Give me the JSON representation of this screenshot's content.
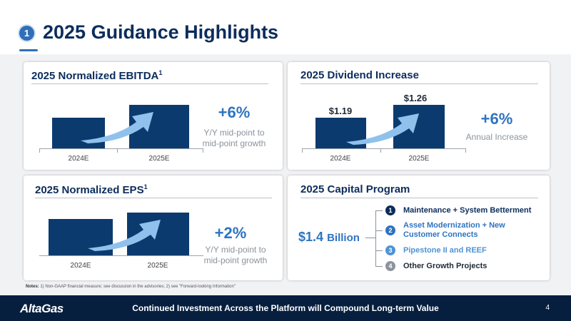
{
  "header": {
    "section_number": "1",
    "title": "2025 Guidance Highlights"
  },
  "ebitda": {
    "title": "2025 Normalized EBITDA",
    "title_sup": "1",
    "pct": "+6%",
    "note_line1": "Y/Y mid-point to",
    "note_line2": "mid-point growth"
  },
  "dividend": {
    "title": "2025 Dividend Increase",
    "pct": "+6%",
    "note": "Annual Increase"
  },
  "eps": {
    "title": "2025 Normalized EPS",
    "title_sup": "1",
    "pct": "+2%",
    "note_line1": "Y/Y mid-point to",
    "note_line2": "mid-point growth"
  },
  "capital": {
    "title": "2025 Capital Program",
    "amount": "$1.4",
    "amount_unit": "Billion",
    "items": [
      {
        "num": "1",
        "label": "Maintenance + System Betterment",
        "color": "#0b2d5c"
      },
      {
        "num": "2",
        "label_line1": "Asset Modernization + New",
        "label_line2": "Customer Connects",
        "color": "#2f74c0"
      },
      {
        "num": "3",
        "label": "Pipestone II and REEF",
        "color": "#4f93d6"
      },
      {
        "num": "4",
        "label": "Other Growth Projects",
        "color": "#1e2a36",
        "badge_color": "#8b949c"
      }
    ]
  },
  "chart_data": [
    {
      "type": "bar",
      "categories": [
        "2024E",
        "2025E"
      ],
      "values": [
        1.0,
        1.06
      ],
      "title": "2025 Normalized EBITDA"
    },
    {
      "type": "bar",
      "categories": [
        "2024E",
        "2025E"
      ],
      "values": [
        1.19,
        1.26
      ],
      "value_labels": [
        "$1.19",
        "$1.26"
      ],
      "title": "2025 Dividend Increase"
    },
    {
      "type": "bar",
      "categories": [
        "2024E",
        "2025E"
      ],
      "values": [
        1.0,
        1.02
      ],
      "title": "2025 Normalized EPS"
    }
  ],
  "notes": {
    "label": "Notes:",
    "text": " 1) Non-GAAP financial measure; see discussion in the advisories; 2) see \"Forward-looking Information\""
  },
  "footer": {
    "logo": "AltaGas",
    "tagline": "Continued Investment Across the Platform will Compound Long-term Value",
    "page_number": "4"
  },
  "colors": {
    "navy": "#0b2d5c",
    "bar": "#0b3a6f",
    "accent": "#2f74c0",
    "footer": "#071f3f"
  }
}
